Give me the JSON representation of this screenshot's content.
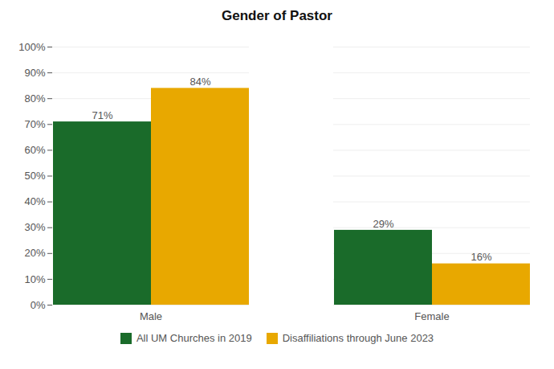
{
  "chart_data": {
    "type": "bar",
    "title": "Gender of Pastor",
    "categories": [
      "Male",
      "Female"
    ],
    "series": [
      {
        "name": "All UM Churches in 2019",
        "color": "#1a6b2a",
        "values": [
          71,
          29
        ],
        "value_labels": [
          "71%",
          "29%"
        ]
      },
      {
        "name": "Disaffiliations through June 2023",
        "color": "#e8a800",
        "values": [
          84,
          16
        ],
        "value_labels": [
          "84%",
          "16%"
        ]
      }
    ],
    "ylim": [
      0,
      100
    ],
    "yticks": [
      {
        "value": 0,
        "label": "0%"
      },
      {
        "value": 10,
        "label": "10%"
      },
      {
        "value": 20,
        "label": "20%"
      },
      {
        "value": 30,
        "label": "30%"
      },
      {
        "value": 40,
        "label": "40%"
      },
      {
        "value": 50,
        "label": "50%"
      },
      {
        "value": 60,
        "label": "60%"
      },
      {
        "value": 70,
        "label": "70%"
      },
      {
        "value": 80,
        "label": "80%"
      },
      {
        "value": 90,
        "label": "90%"
      },
      {
        "value": 100,
        "label": "100%"
      }
    ],
    "grid": true,
    "legend": "bottom",
    "data_labels": true
  }
}
